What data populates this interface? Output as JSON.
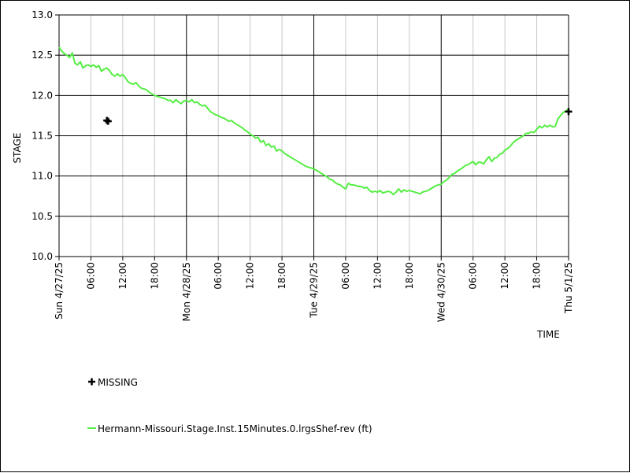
{
  "chart_data": {
    "type": "line",
    "ylabel": "STAGE",
    "xlabel": "TIME",
    "ylim": [
      10.0,
      13.0
    ],
    "xlim": [
      0,
      96
    ],
    "grid": true,
    "y_ticks": [
      {
        "value": 10.0,
        "label": "10.0"
      },
      {
        "value": 10.5,
        "label": "10.5"
      },
      {
        "value": 11.0,
        "label": "11.0"
      },
      {
        "value": 11.5,
        "label": "11.5"
      },
      {
        "value": 12.0,
        "label": "12.0"
      },
      {
        "value": 12.5,
        "label": "12.5"
      },
      {
        "value": 13.0,
        "label": "13.0"
      }
    ],
    "x_ticks": [
      {
        "hours": 0,
        "label": "Sun 4/27/25",
        "major": true
      },
      {
        "hours": 6,
        "label": "06:00",
        "major": false
      },
      {
        "hours": 12,
        "label": "12:00",
        "major": false
      },
      {
        "hours": 18,
        "label": "18:00",
        "major": false
      },
      {
        "hours": 24,
        "label": "Mon 4/28/25",
        "major": true
      },
      {
        "hours": 30,
        "label": "06:00",
        "major": false
      },
      {
        "hours": 36,
        "label": "12:00",
        "major": false
      },
      {
        "hours": 42,
        "label": "18:00",
        "major": false
      },
      {
        "hours": 48,
        "label": "Tue 4/29/25",
        "major": true
      },
      {
        "hours": 54,
        "label": "06:00",
        "major": false
      },
      {
        "hours": 60,
        "label": "12:00",
        "major": false
      },
      {
        "hours": 66,
        "label": "18:00",
        "major": false
      },
      {
        "hours": 72,
        "label": "Wed 4/30/25",
        "major": true
      },
      {
        "hours": 78,
        "label": "06:00",
        "major": false
      },
      {
        "hours": 84,
        "label": "12:00",
        "major": false
      },
      {
        "hours": 90,
        "label": "18:00",
        "major": false
      },
      {
        "hours": 96,
        "label": "Thu 5/1/25",
        "major": true
      }
    ],
    "series": [
      {
        "name": "Hermann-Missouri.Stage.Inst.15Minutes.0.lrgsShef-rev (ft)",
        "color": "#55ee44",
        "points": [
          [
            0.0,
            12.6
          ],
          [
            0.5,
            12.55
          ],
          [
            1.0,
            12.52
          ],
          [
            1.5,
            12.5
          ],
          [
            2.0,
            12.47
          ],
          [
            2.5,
            12.53
          ],
          [
            3.0,
            12.4
          ],
          [
            3.5,
            12.38
          ],
          [
            4.0,
            12.42
          ],
          [
            4.5,
            12.34
          ],
          [
            5.0,
            12.37
          ],
          [
            5.5,
            12.38
          ],
          [
            6.0,
            12.36
          ],
          [
            6.5,
            12.38
          ],
          [
            7.0,
            12.35
          ],
          [
            7.5,
            12.37
          ],
          [
            8.0,
            12.3
          ],
          [
            8.5,
            12.33
          ],
          [
            9.0,
            12.34
          ],
          [
            9.5,
            12.31
          ],
          [
            10.0,
            12.26
          ],
          [
            10.5,
            12.24
          ],
          [
            11.0,
            12.27
          ],
          [
            11.5,
            12.24
          ],
          [
            12.0,
            12.26
          ],
          [
            12.5,
            12.22
          ],
          [
            13.0,
            12.17
          ],
          [
            13.5,
            12.15
          ],
          [
            14.0,
            12.14
          ],
          [
            14.5,
            12.16
          ],
          [
            15.0,
            12.12
          ],
          [
            15.5,
            12.09
          ],
          [
            16.0,
            12.08
          ],
          [
            16.5,
            12.07
          ],
          [
            17.0,
            12.04
          ],
          [
            17.5,
            12.02
          ],
          [
            18.0,
            12.0
          ],
          [
            18.5,
            11.99
          ],
          [
            19.0,
            11.98
          ],
          [
            19.5,
            11.97
          ],
          [
            20.0,
            11.96
          ],
          [
            20.5,
            11.94
          ],
          [
            21.0,
            11.94
          ],
          [
            21.5,
            11.91
          ],
          [
            22.0,
            11.95
          ],
          [
            22.5,
            11.92
          ],
          [
            23.0,
            11.9
          ],
          [
            23.5,
            11.93
          ],
          [
            24.0,
            11.94
          ],
          [
            24.5,
            11.92
          ],
          [
            25.0,
            11.95
          ],
          [
            25.5,
            11.91
          ],
          [
            26.0,
            11.92
          ],
          [
            26.5,
            11.89
          ],
          [
            27.0,
            11.87
          ],
          [
            27.5,
            11.88
          ],
          [
            28.0,
            11.84
          ],
          [
            28.5,
            11.8
          ],
          [
            29.0,
            11.78
          ],
          [
            29.5,
            11.76
          ],
          [
            30.0,
            11.75
          ],
          [
            30.5,
            11.73
          ],
          [
            31.0,
            11.72
          ],
          [
            31.5,
            11.7
          ],
          [
            32.0,
            11.68
          ],
          [
            32.5,
            11.69
          ],
          [
            33.0,
            11.66
          ],
          [
            33.5,
            11.64
          ],
          [
            34.0,
            11.62
          ],
          [
            34.5,
            11.6
          ],
          [
            35.0,
            11.57
          ],
          [
            35.5,
            11.55
          ],
          [
            36.0,
            11.52
          ],
          [
            36.5,
            11.5
          ],
          [
            37.0,
            11.47
          ],
          [
            37.5,
            11.48
          ],
          [
            38.0,
            11.42
          ],
          [
            38.5,
            11.44
          ],
          [
            39.0,
            11.38
          ],
          [
            39.5,
            11.4
          ],
          [
            40.0,
            11.36
          ],
          [
            40.5,
            11.37
          ],
          [
            41.0,
            11.31
          ],
          [
            41.5,
            11.33
          ],
          [
            42.0,
            11.31
          ],
          [
            42.5,
            11.28
          ],
          [
            43.0,
            11.26
          ],
          [
            43.5,
            11.24
          ],
          [
            44.0,
            11.22
          ],
          [
            44.5,
            11.2
          ],
          [
            45.0,
            11.18
          ],
          [
            45.5,
            11.16
          ],
          [
            46.0,
            11.14
          ],
          [
            46.5,
            11.12
          ],
          [
            47.0,
            11.11
          ],
          [
            47.5,
            11.1
          ],
          [
            48.0,
            11.09
          ],
          [
            48.5,
            11.07
          ],
          [
            49.0,
            11.05
          ],
          [
            49.5,
            11.03
          ],
          [
            50.0,
            11.01
          ],
          [
            50.5,
            10.99
          ],
          [
            51.0,
            10.96
          ],
          [
            51.5,
            10.95
          ],
          [
            52.0,
            10.92
          ],
          [
            52.5,
            10.9
          ],
          [
            53.0,
            10.89
          ],
          [
            53.5,
            10.86
          ],
          [
            54.0,
            10.84
          ],
          [
            54.5,
            10.91
          ],
          [
            55.0,
            10.89
          ],
          [
            55.5,
            10.89
          ],
          [
            56.0,
            10.88
          ],
          [
            56.5,
            10.87
          ],
          [
            57.0,
            10.87
          ],
          [
            57.5,
            10.85
          ],
          [
            58.0,
            10.86
          ],
          [
            58.5,
            10.82
          ],
          [
            59.0,
            10.8
          ],
          [
            59.5,
            10.81
          ],
          [
            60.0,
            10.8
          ],
          [
            60.5,
            10.82
          ],
          [
            61.0,
            10.79
          ],
          [
            61.5,
            10.8
          ],
          [
            62.0,
            10.81
          ],
          [
            62.5,
            10.8
          ],
          [
            63.0,
            10.77
          ],
          [
            63.5,
            10.8
          ],
          [
            64.0,
            10.84
          ],
          [
            64.5,
            10.8
          ],
          [
            65.0,
            10.83
          ],
          [
            65.5,
            10.81
          ],
          [
            66.0,
            10.82
          ],
          [
            66.5,
            10.81
          ],
          [
            67.0,
            10.8
          ],
          [
            67.5,
            10.79
          ],
          [
            68.0,
            10.78
          ],
          [
            68.5,
            10.8
          ],
          [
            69.0,
            10.81
          ],
          [
            69.5,
            10.82
          ],
          [
            70.0,
            10.84
          ],
          [
            70.5,
            10.86
          ],
          [
            71.0,
            10.88
          ],
          [
            71.5,
            10.89
          ],
          [
            72.0,
            10.9
          ],
          [
            72.5,
            10.93
          ],
          [
            73.0,
            10.95
          ],
          [
            73.5,
            10.98
          ],
          [
            74.0,
            11.02
          ],
          [
            74.5,
            11.03
          ],
          [
            75.0,
            11.06
          ],
          [
            75.5,
            11.08
          ],
          [
            76.0,
            11.1
          ],
          [
            76.5,
            11.13
          ],
          [
            77.0,
            11.14
          ],
          [
            77.5,
            11.16
          ],
          [
            78.0,
            11.18
          ],
          [
            78.5,
            11.14
          ],
          [
            79.0,
            11.17
          ],
          [
            79.5,
            11.17
          ],
          [
            80.0,
            11.15
          ],
          [
            80.5,
            11.2
          ],
          [
            81.0,
            11.24
          ],
          [
            81.5,
            11.18
          ],
          [
            82.0,
            11.22
          ],
          [
            82.5,
            11.23
          ],
          [
            83.0,
            11.27
          ],
          [
            83.5,
            11.28
          ],
          [
            84.0,
            11.32
          ],
          [
            84.5,
            11.34
          ],
          [
            85.0,
            11.37
          ],
          [
            85.5,
            11.41
          ],
          [
            86.0,
            11.44
          ],
          [
            86.5,
            11.46
          ],
          [
            87.0,
            11.48
          ],
          [
            87.5,
            11.5
          ],
          [
            88.0,
            11.53
          ],
          [
            88.5,
            11.53
          ],
          [
            89.0,
            11.55
          ],
          [
            89.5,
            11.54
          ],
          [
            90.0,
            11.58
          ],
          [
            90.5,
            11.62
          ],
          [
            91.0,
            11.6
          ],
          [
            91.5,
            11.63
          ],
          [
            92.0,
            11.61
          ],
          [
            92.5,
            11.63
          ],
          [
            93.0,
            11.61
          ],
          [
            93.5,
            11.62
          ],
          [
            94.0,
            11.71
          ],
          [
            94.5,
            11.75
          ],
          [
            95.0,
            11.79
          ],
          [
            95.5,
            11.81
          ],
          [
            96.0,
            11.83
          ]
        ]
      }
    ],
    "missing": {
      "label": "MISSING",
      "points": [
        [
          9.0,
          11.69
        ],
        [
          9.25,
          11.68
        ],
        [
          96.0,
          11.8
        ]
      ]
    }
  }
}
